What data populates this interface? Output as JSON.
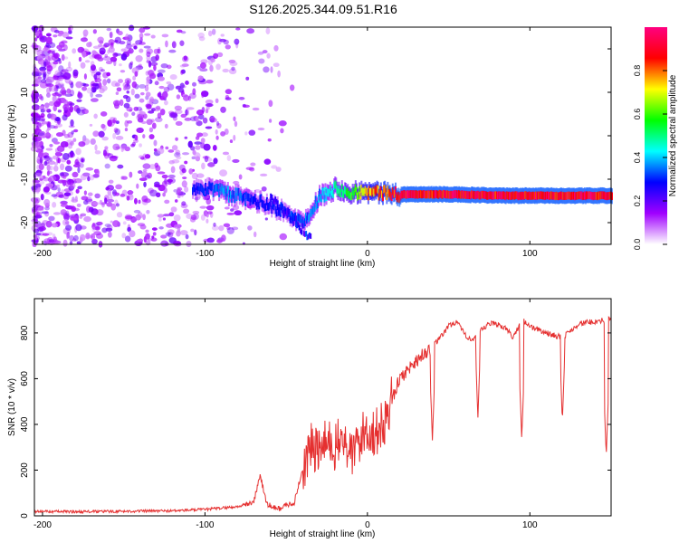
{
  "title": "S126.2025.344.09.51.R16",
  "chart_data": [
    {
      "type": "heatmap",
      "xlabel": "Height of straight line (km)",
      "ylabel": "Frequency (Hz)",
      "xlim": [
        -205,
        150
      ],
      "ylim": [
        -25,
        25
      ],
      "xticks": [
        -200,
        -100,
        0,
        100
      ],
      "yticks": [
        -20,
        -10,
        0,
        10,
        20
      ],
      "colorbar": {
        "label": "Normalized spectral amplitude",
        "range": [
          0,
          1
        ],
        "ticks": [
          "0.0",
          "0.2",
          "0.4",
          "0.6",
          "0.8"
        ],
        "colors": [
          "#ffffff",
          "#a000ff",
          "#0000ff",
          "#00ffff",
          "#00ff00",
          "#ffff00",
          "#ff0000",
          "#ff0080"
        ]
      },
      "features": [
        {
          "name": "noise",
          "x_range": [
            -205,
            -105
          ],
          "freq_range": [
            -25,
            25
          ],
          "amplitude": 0.15
        },
        {
          "name": "signal-band",
          "x": [
            -100,
            -90,
            -80,
            -70,
            -60,
            -50,
            -40,
            -30,
            -20,
            -10,
            0,
            20,
            50,
            80,
            100,
            150
          ],
          "freq": [
            -12,
            -13,
            -14,
            -15,
            -16,
            -18,
            -20,
            -14,
            -12,
            -13,
            -13,
            -13.5,
            -13.5,
            -13.8,
            -13.8,
            -13.8
          ],
          "amplitude": [
            0.3,
            0.4,
            0.35,
            0.3,
            0.3,
            0.3,
            0.35,
            0.4,
            0.5,
            0.6,
            0.8,
            0.95,
            0.95,
            0.95,
            0.95,
            0.95
          ]
        },
        {
          "name": "diagonal-streak",
          "x": [
            -60,
            -45,
            -35
          ],
          "freq": [
            -15,
            -20,
            -24
          ]
        }
      ]
    },
    {
      "type": "line",
      "xlabel": "Height of straight line (km)",
      "ylabel": "SNR (10 * v/v)",
      "xlim": [
        -205,
        150
      ],
      "ylim": [
        0,
        950
      ],
      "xticks": [
        -200,
        -100,
        0,
        100
      ],
      "yticks": [
        0,
        200,
        400,
        600,
        800
      ],
      "color": "#e53030",
      "series": [
        {
          "name": "SNR",
          "x": [
            -205,
            -180,
            -150,
            -120,
            -100,
            -80,
            -70,
            -66,
            -62,
            -55,
            -45,
            -40,
            -35,
            -30,
            -25,
            -20,
            -15,
            -10,
            -5,
            0,
            5,
            10,
            15,
            20,
            25,
            30,
            35,
            40,
            45,
            50,
            55,
            60,
            65,
            70,
            75,
            80,
            85,
            90,
            95,
            100,
            110,
            120,
            130,
            140,
            150
          ],
          "y": [
            20,
            18,
            20,
            22,
            28,
            40,
            60,
            180,
            50,
            30,
            60,
            200,
            300,
            280,
            320,
            300,
            340,
            260,
            330,
            380,
            360,
            400,
            510,
            600,
            640,
            680,
            710,
            740,
            780,
            830,
            850,
            790,
            770,
            810,
            840,
            840,
            820,
            780,
            860,
            830,
            800,
            780,
            840,
            850,
            860
          ]
        }
      ],
      "dips": [
        {
          "x": 40,
          "y": 330
        },
        {
          "x": 68,
          "y": 430
        },
        {
          "x": 95,
          "y": 335
        },
        {
          "x": 120,
          "y": 410
        },
        {
          "x": 147,
          "y": 260
        }
      ]
    }
  ]
}
